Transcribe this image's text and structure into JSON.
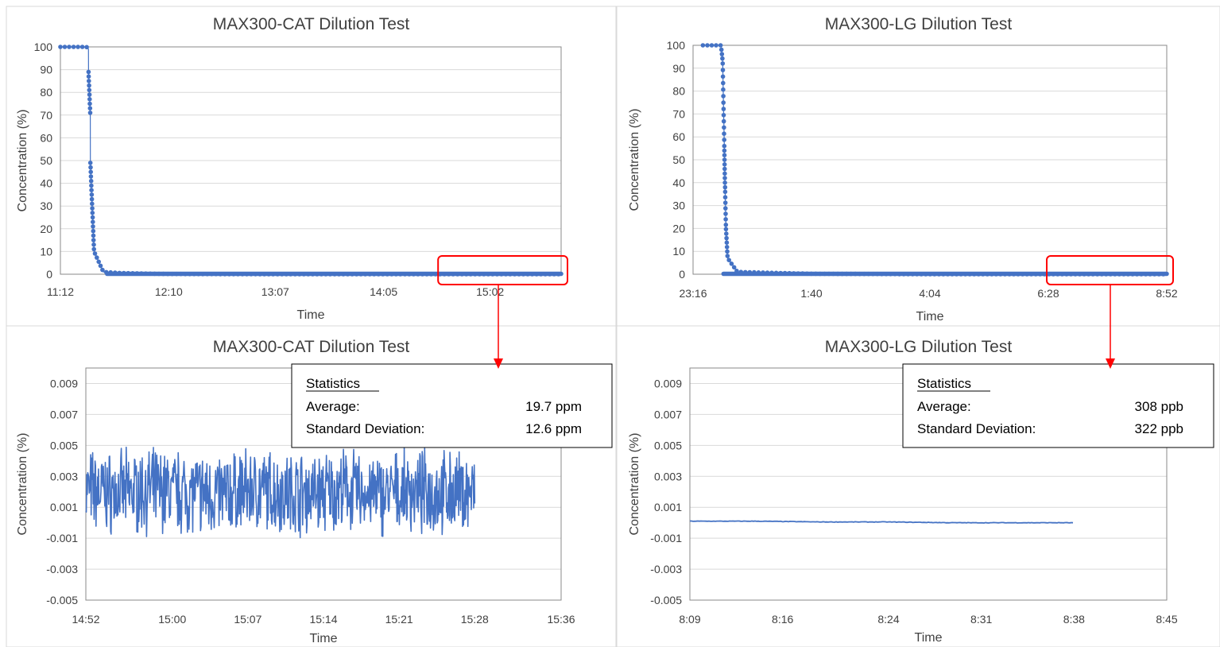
{
  "charts": [
    {
      "chart_data": {
        "type": "scatter",
        "title": "MAX300-CAT Dilution Test",
        "xlabel": "Time",
        "ylabel": "Concentration (%)",
        "x_ticks": [
          "11:12",
          "12:10",
          "13:07",
          "14:05",
          "15:02"
        ],
        "xlim": [
          "11:12",
          "15:40"
        ],
        "y_ticks": [
          "0",
          "10",
          "20",
          "30",
          "40",
          "50",
          "60",
          "70",
          "80",
          "90",
          "100"
        ],
        "ylim": [
          0,
          100
        ],
        "grid": true,
        "series": [
          {
            "marker": "circle",
            "x": [
              "11:12",
              "11:26",
              "11:27",
              "11:27",
              "11:28",
              "11:28",
              "11:29",
              "11:30",
              "11:35",
              "11:45",
              "12:10",
              "13:07",
              "14:05",
              "15:02",
              "15:40"
            ],
            "values": [
              100,
              100,
              99,
              90,
              70,
              50,
              30,
              10,
              1,
              0.5,
              0.1,
              0,
              0,
              0,
              0
            ]
          }
        ],
        "highlight": {
          "x_start": "14:35",
          "x_end": "15:40",
          "color": "#FF0000"
        }
      }
    },
    {
      "chart_data": {
        "type": "scatter",
        "title": "MAX300-LG Dilution Test",
        "xlabel": "Time",
        "ylabel": "Concentration (%)",
        "x_ticks": [
          "23:16",
          "1:40",
          "4:04",
          "6:28",
          "8:52"
        ],
        "xlim": [
          "23:16",
          "8:52"
        ],
        "y_ticks": [
          "0",
          "10",
          "20",
          "30",
          "40",
          "50",
          "60",
          "70",
          "80",
          "90",
          "100"
        ],
        "ylim": [
          0,
          100
        ],
        "grid": true,
        "series": [
          {
            "marker": "circle",
            "x": [
              "23:28",
              "23:50",
              "23:52",
              "23:53",
              "23:54",
              "23:55",
              "23:56",
              "23:58",
              "0:10",
              "1:40",
              "4:04",
              "6:28",
              "8:52"
            ],
            "values": [
              100,
              100,
              93,
              74,
              56,
              36,
              20,
              7,
              1,
              0.2,
              0,
              0,
              0
            ]
          }
        ],
        "highlight": {
          "x_start": "6:28",
          "x_end": "8:52",
          "color": "#FF0000"
        }
      }
    },
    {
      "chart_data": {
        "type": "line",
        "title": "MAX300-CAT Dilution Test",
        "xlabel": "Time",
        "ylabel": "Concentration (%)",
        "x_ticks": [
          "14:52",
          "15:00",
          "15:07",
          "15:14",
          "15:21",
          "15:28",
          "15:36"
        ],
        "xlim": [
          "14:52",
          "15:36"
        ],
        "y_ticks": [
          "-0.005",
          "-0.003",
          "-0.001",
          "0.001",
          "0.003",
          "0.005",
          "0.007",
          "0.009"
        ],
        "ylim": [
          -0.005,
          0.01
        ],
        "grid": true,
        "series": [
          {
            "x": [
              "14:52",
              "14:55",
              "14:58",
              "15:01",
              "15:04",
              "15:07",
              "15:10",
              "15:13",
              "15:16",
              "15:19",
              "15:22",
              "15:25",
              "15:28"
            ],
            "values": [
              0.0021,
              0.0019,
              0.0021,
              0.002,
              0.0018,
              0.0021,
              0.002,
              0.0019,
              0.0021,
              0.0018,
              0.002,
              0.0019,
              0.002
            ],
            "noise": "high",
            "range": [
              -0.002,
              0.006
            ]
          }
        ],
        "statistics": {
          "heading": "Statistics",
          "rows": [
            {
              "label": "Average:",
              "value": "19.7 ppm"
            },
            {
              "label": "Standard Deviation:",
              "value": "12.6 ppm"
            }
          ]
        }
      }
    },
    {
      "chart_data": {
        "type": "line",
        "title": "MAX300-LG Dilution Test",
        "xlabel": "Time",
        "ylabel": "Concentration (%)",
        "x_ticks": [
          "8:09",
          "8:16",
          "8:24",
          "8:31",
          "8:38",
          "8:45"
        ],
        "xlim": [
          "8:09",
          "8:45"
        ],
        "y_ticks": [
          "-0.005",
          "-0.003",
          "-0.001",
          "0.001",
          "0.003",
          "0.005",
          "0.007",
          "0.009"
        ],
        "ylim": [
          -0.005,
          0.01
        ],
        "grid": true,
        "series": [
          {
            "x": [
              "8:09",
              "8:14",
              "8:19",
              "8:24",
              "8:29",
              "8:34",
              "8:38"
            ],
            "values": [
              0.0001,
              0.0001,
              5e-05,
              5e-05,
              0.0,
              0.0,
              0.0
            ]
          }
        ],
        "statistics": {
          "heading": "Statistics",
          "rows": [
            {
              "label": "Average:",
              "value": "308 ppb"
            },
            {
              "label": "Standard Deviation:",
              "value": "322 ppb"
            }
          ]
        }
      }
    }
  ],
  "colors": {
    "series": "#4472C4",
    "highlight": "#FF0000",
    "grid": "#D9D9D9",
    "axis_frame": "#898989",
    "panel_border": "#D9D9D9",
    "text": "#404040"
  }
}
